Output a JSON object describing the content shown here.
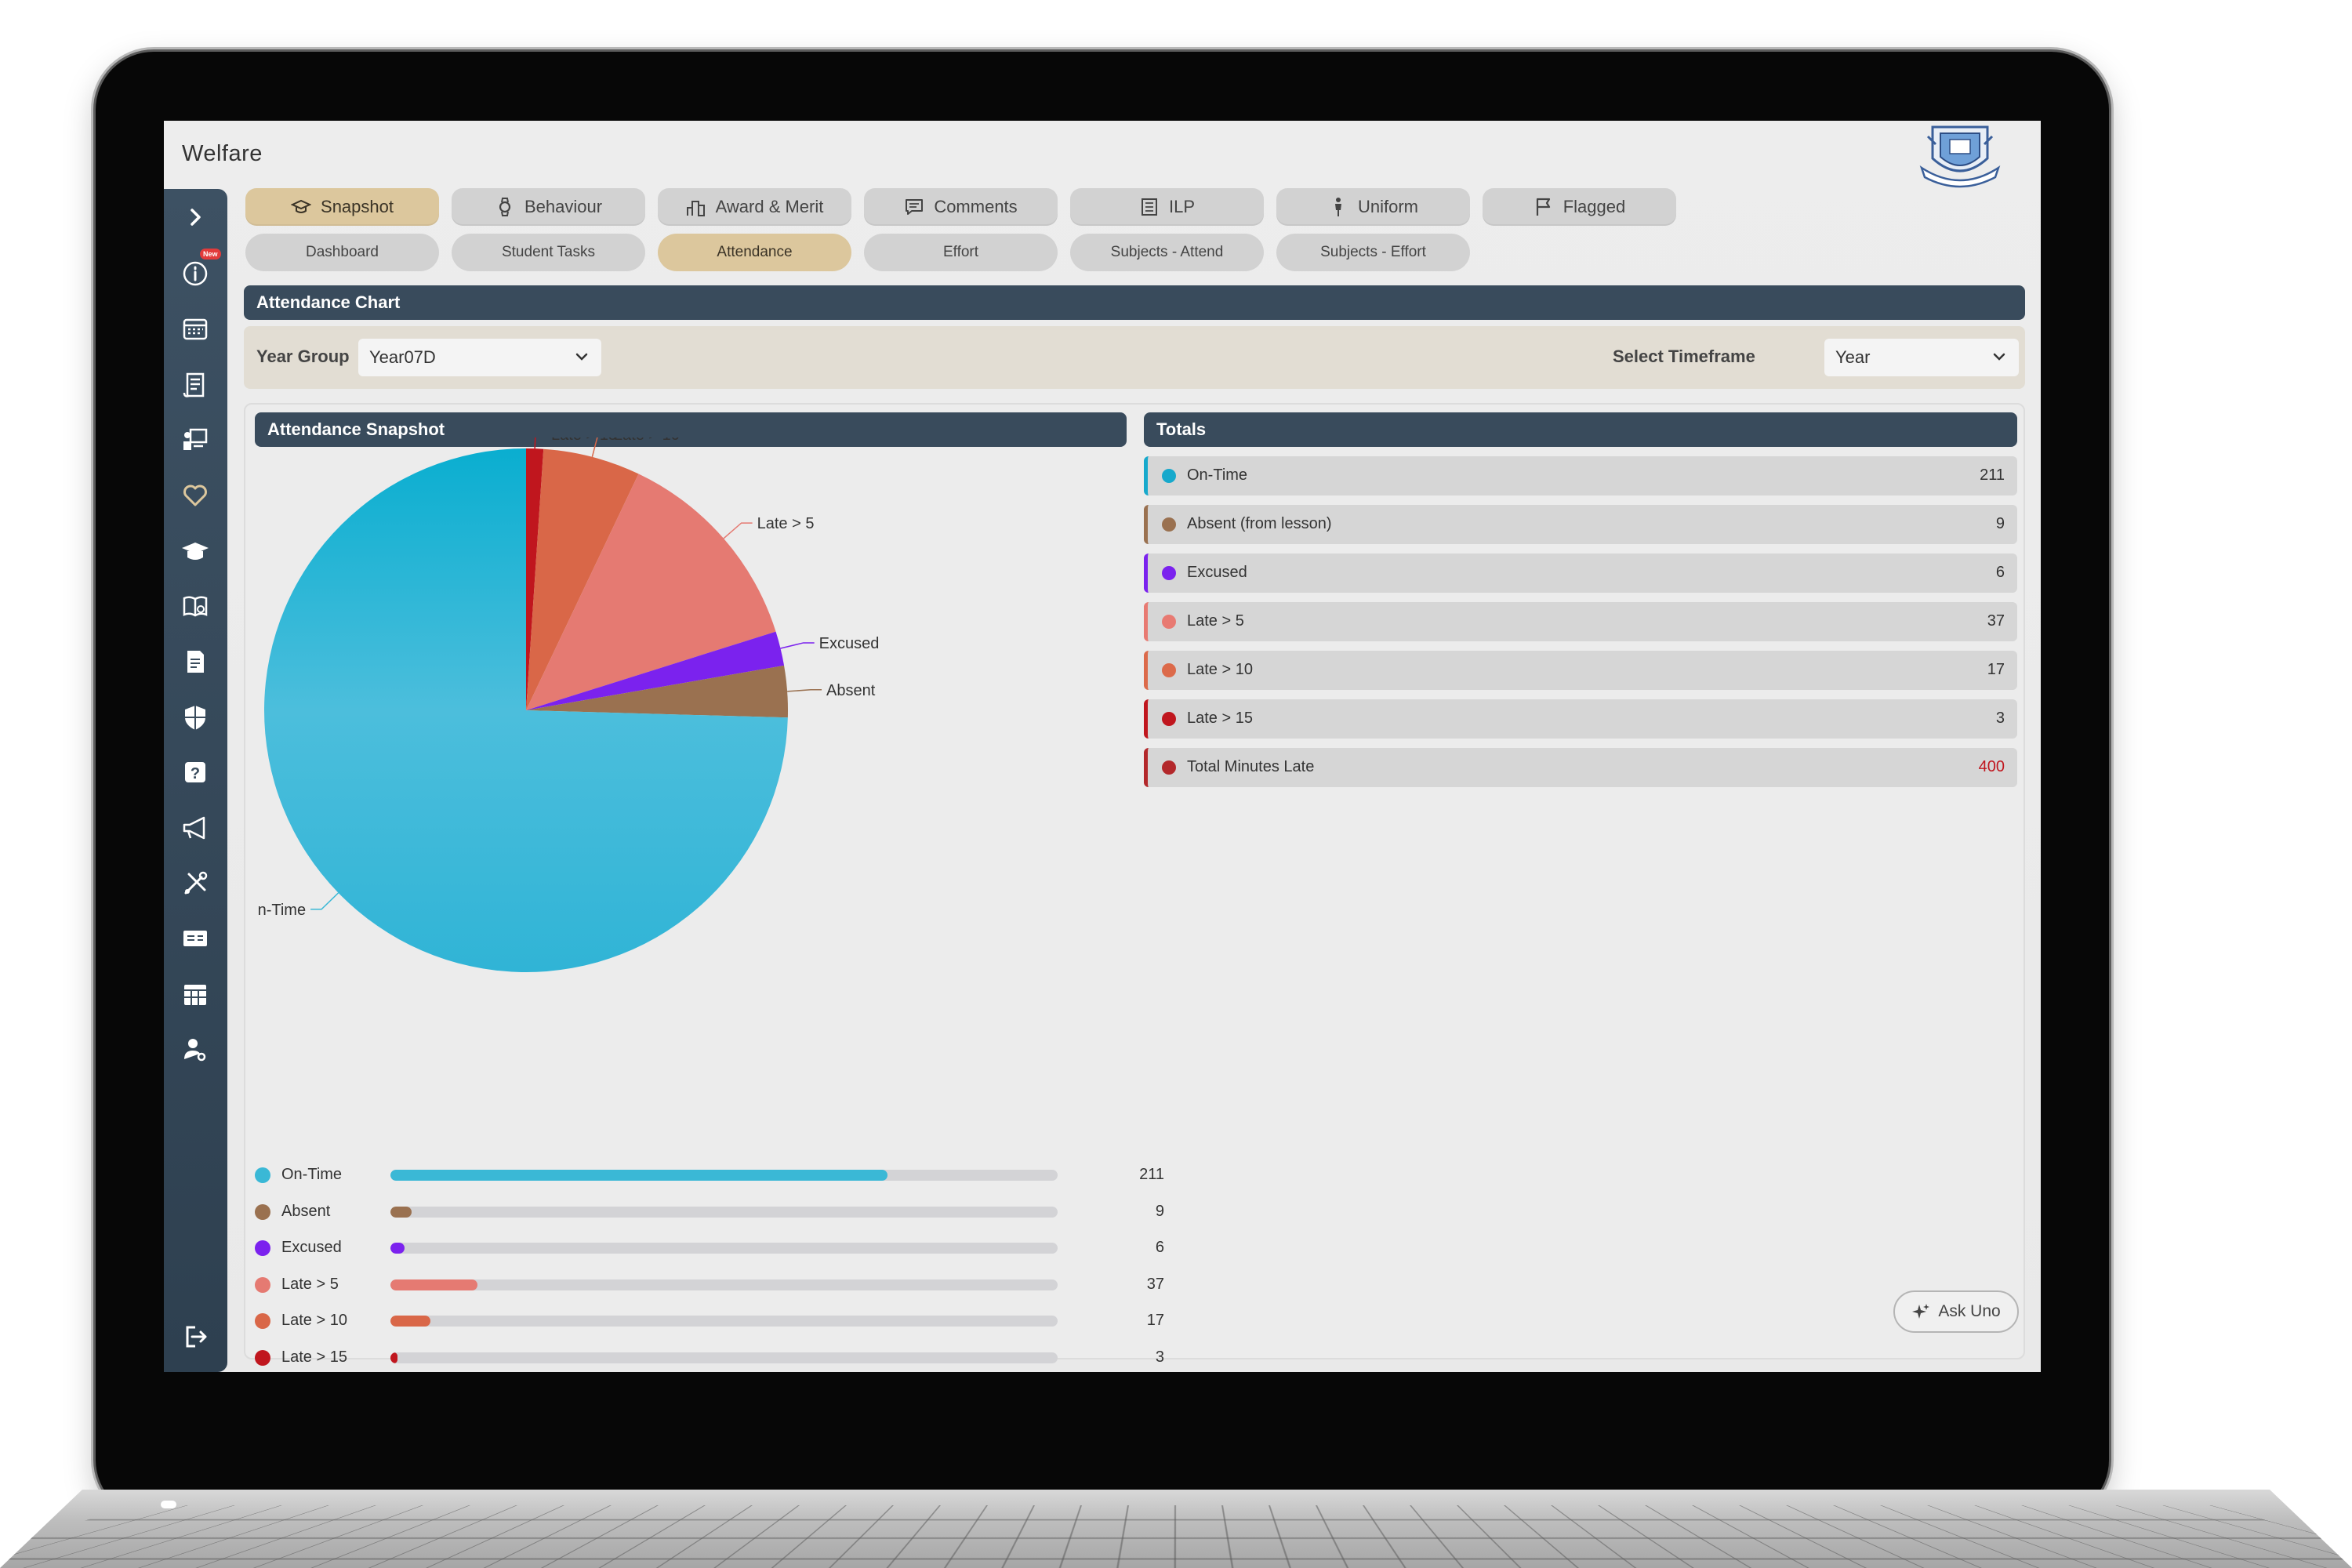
{
  "app": {
    "title": "Welfare"
  },
  "tabs": [
    {
      "label": "Snapshot",
      "icon": "graduation-cap-icon",
      "active": true
    },
    {
      "label": "Behaviour",
      "icon": "watch-icon",
      "active": false
    },
    {
      "label": "Award & Merit",
      "icon": "podium-icon",
      "active": false
    },
    {
      "label": "Comments",
      "icon": "comment-icon",
      "active": false
    },
    {
      "label": "ILP",
      "icon": "list-icon",
      "active": false
    },
    {
      "label": "Uniform",
      "icon": "person-icon",
      "active": false
    },
    {
      "label": "Flagged",
      "icon": "flag-icon",
      "active": false
    }
  ],
  "subtabs": [
    {
      "label": "Dashboard",
      "active": false
    },
    {
      "label": "Student Tasks",
      "active": false
    },
    {
      "label": "Attendance",
      "active": true
    },
    {
      "label": "Effort",
      "active": false
    },
    {
      "label": "Subjects - Attend",
      "active": false
    },
    {
      "label": "Subjects - Effort",
      "active": false
    }
  ],
  "sidebar": {
    "items": [
      {
        "icon": "chevron-right-icon"
      },
      {
        "icon": "info-new-icon",
        "badge": "New"
      },
      {
        "icon": "calendar-icon"
      },
      {
        "icon": "scroll-icon"
      },
      {
        "icon": "presentation-icon"
      },
      {
        "icon": "heart-icon",
        "active": true
      },
      {
        "icon": "graduation-cap-icon"
      },
      {
        "icon": "book-icon"
      },
      {
        "icon": "document-icon"
      },
      {
        "icon": "shield-icon"
      },
      {
        "icon": "question-icon"
      },
      {
        "icon": "megaphone-icon"
      },
      {
        "icon": "tools-icon"
      },
      {
        "icon": "id-card-icon"
      },
      {
        "icon": "calendar-grid-icon"
      },
      {
        "icon": "user-settings-icon"
      }
    ],
    "logout_icon": "logout-icon"
  },
  "chart_section": {
    "title": "Attendance Chart"
  },
  "filters": {
    "year_group_label": "Year Group",
    "year_group_value": "Year07D",
    "timeframe_label": "Select Timeframe",
    "timeframe_value": "Year"
  },
  "snapshot": {
    "title": "Attendance Snapshot"
  },
  "totals": {
    "title": "Totals",
    "rows": [
      {
        "label": "On-Time",
        "value": "211",
        "color": "#17a9cc"
      },
      {
        "label": "Absent (from lesson)",
        "value": "9",
        "color": "#9a7150"
      },
      {
        "label": "Excused",
        "value": "6",
        "color": "#7b22ee"
      },
      {
        "label": "Late > 5",
        "value": "37",
        "color": "#e87a72"
      },
      {
        "label": "Late > 10",
        "value": "17",
        "color": "#dc6a4a"
      },
      {
        "label": "Late > 15",
        "value": "3",
        "color": "#c0161e"
      },
      {
        "label": "Total Minutes Late",
        "value": "400",
        "color": "#b3282b",
        "value_color": "#c0161e"
      }
    ]
  },
  "ask_button": {
    "label": "Ask Uno",
    "icon": "sparkle-icon"
  },
  "chart_data": {
    "type": "pie",
    "title": "Attendance Snapshot",
    "labels": [
      "Late > 15",
      "Late > 10",
      "Late > 5",
      "Excused",
      "Absent",
      "On-Time"
    ],
    "values": [
      3,
      17,
      37,
      6,
      9,
      211
    ],
    "colors": [
      "#c0161e",
      "#d96748",
      "#e57a72",
      "#7b22ee",
      "#9a7150",
      "#3ab8d6"
    ],
    "bar_list": [
      {
        "label": "On-Time",
        "value": 211,
        "color": "#3ab8d6"
      },
      {
        "label": "Absent",
        "value": 9,
        "color": "#9a7150"
      },
      {
        "label": "Excused",
        "value": 6,
        "color": "#7b22ee"
      },
      {
        "label": "Late > 5",
        "value": 37,
        "color": "#e57a72"
      },
      {
        "label": "Late > 10",
        "value": 17,
        "color": "#d96748"
      },
      {
        "label": "Late > 15",
        "value": 3,
        "color": "#c0161e"
      }
    ],
    "bar_max": 283
  }
}
